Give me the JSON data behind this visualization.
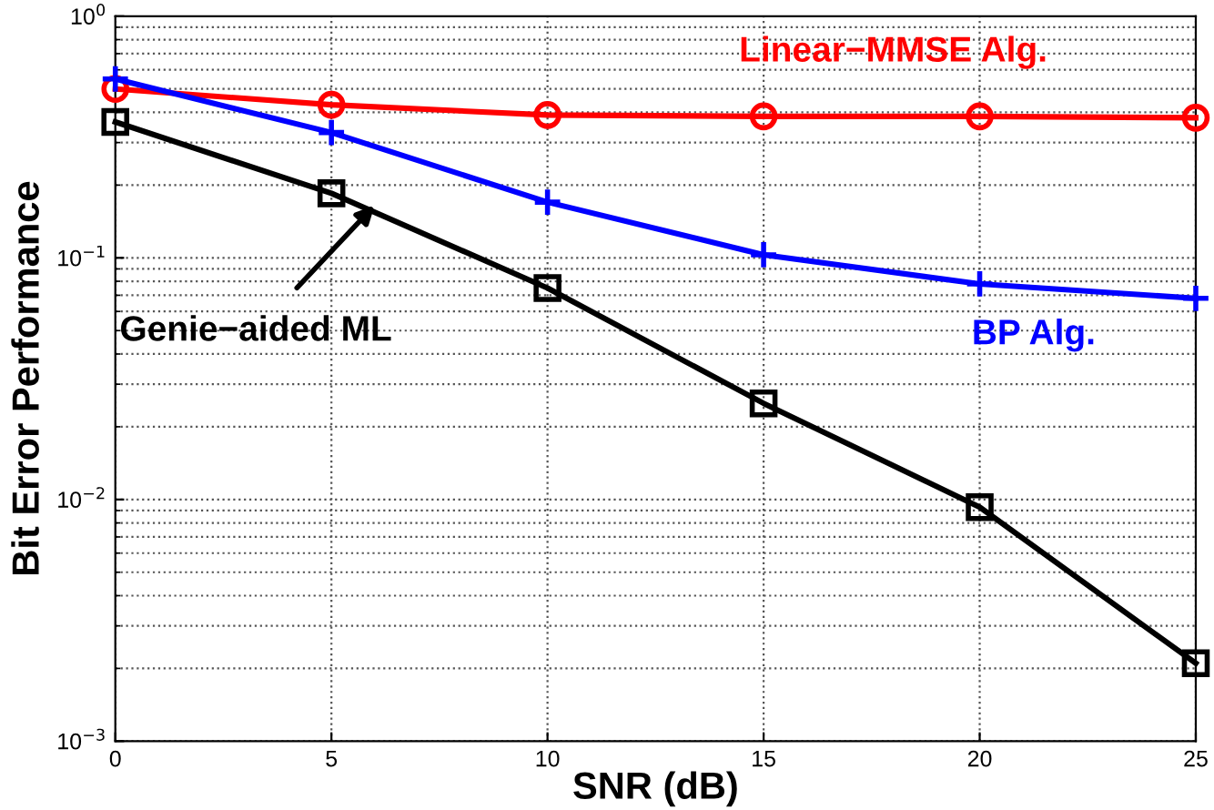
{
  "chart_data": {
    "type": "line",
    "xlabel": "SNR (dB)",
    "ylabel": "Bit Error Performance",
    "x": [
      0,
      5,
      10,
      15,
      20,
      25
    ],
    "series": [
      {
        "name": "Linear−MMSE Alg.",
        "color": "#ff0000",
        "marker": "circle",
        "values": [
          0.5,
          0.43,
          0.39,
          0.385,
          0.385,
          0.38
        ]
      },
      {
        "name": "BP Alg.",
        "color": "#0000ff",
        "marker": "cross",
        "values": [
          0.55,
          0.33,
          0.17,
          0.103,
          0.078,
          0.068
        ]
      },
      {
        "color": "#000000",
        "marker": "square",
        "values": [
          0.365,
          0.185,
          0.075,
          0.025,
          0.0093,
          0.0021
        ]
      }
    ],
    "annotations": [
      {
        "text": "Genie−aided ML",
        "x": 6,
        "y": 0.165
      }
    ],
    "log": "y",
    "xlim": [
      0,
      25
    ],
    "xticks": [
      0,
      5,
      10,
      15,
      20,
      25
    ],
    "ylim": [
      0.001,
      1
    ],
    "yticks": [
      {
        "value": 0.001,
        "label": "10$^{−3}$"
      },
      {
        "value": 0.01,
        "label": "10$^{−2}$"
      },
      {
        "value": 0.1,
        "label": "10$^{−1}$"
      },
      {
        "value": 1,
        "label": "10$^{0}$"
      }
    ],
    "grid": true,
    "legend": false,
    "line_style": "solid"
  }
}
